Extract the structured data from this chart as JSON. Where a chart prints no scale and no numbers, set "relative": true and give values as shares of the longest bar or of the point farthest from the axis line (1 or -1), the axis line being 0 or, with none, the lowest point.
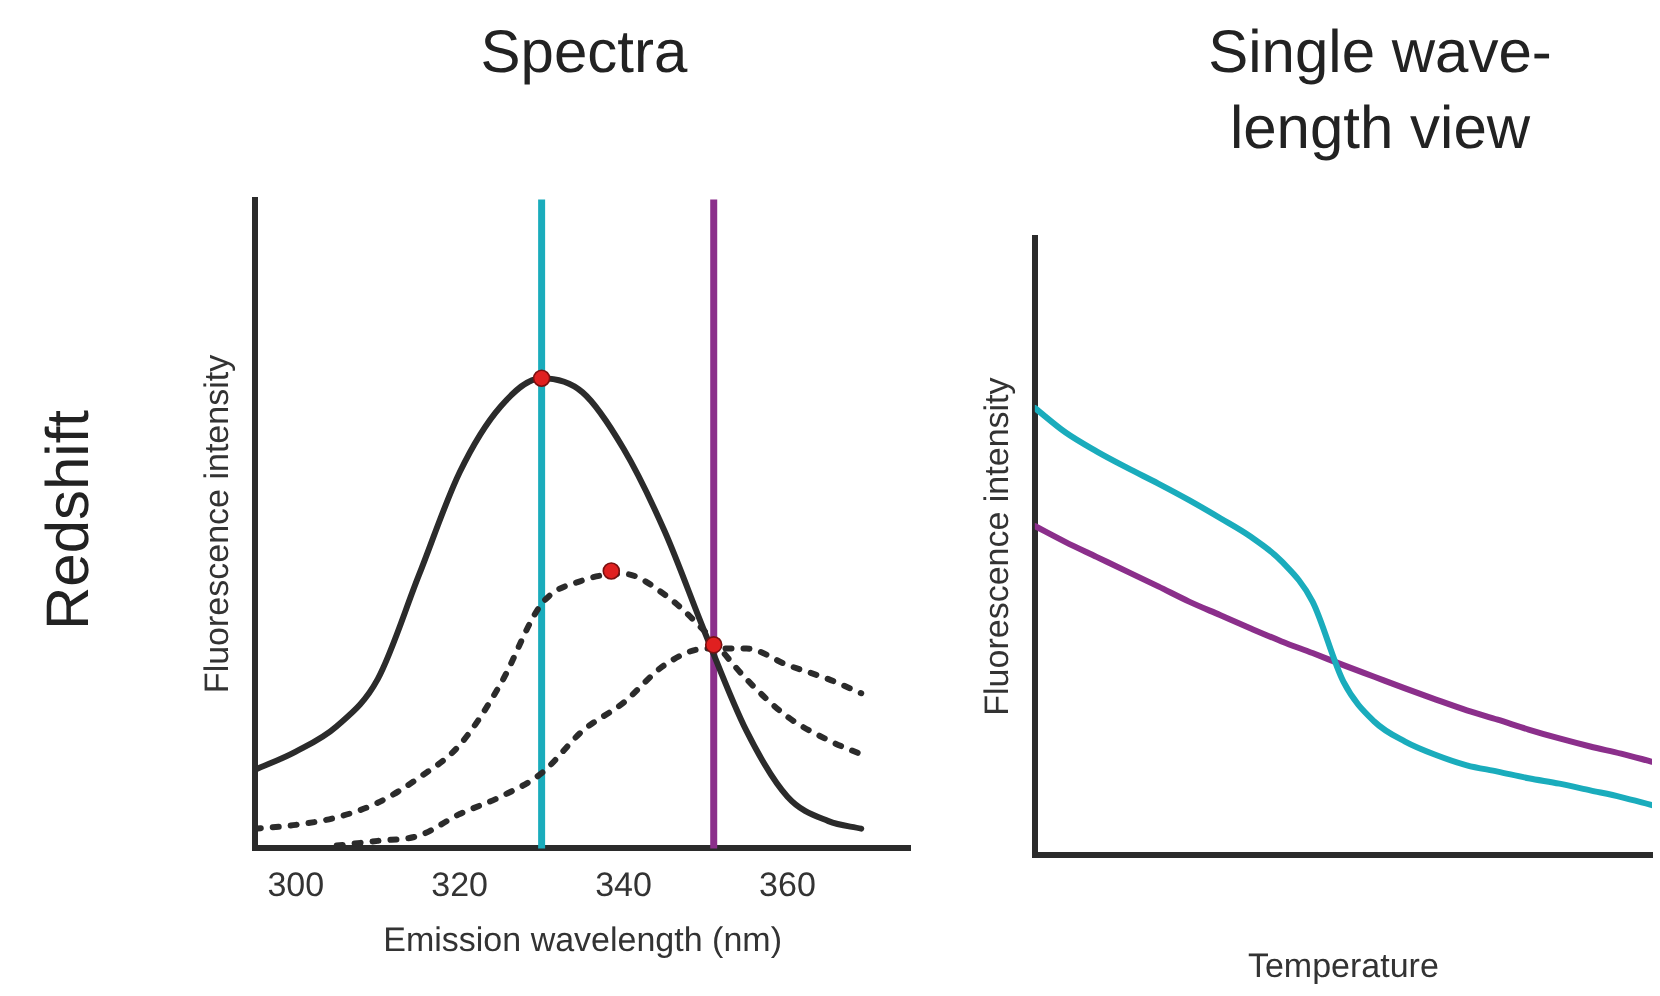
{
  "chart_data": [
    {
      "type": "line",
      "title": "Spectra",
      "xlabel": "Emission wavelength (nm)",
      "ylabel": "Fluorescence intensity",
      "annotations": [
        "Redshift"
      ],
      "relative": true,
      "xlim": [
        295,
        375
      ],
      "xticks": [
        300,
        320,
        340,
        360
      ],
      "tick_labels": "x",
      "grid": false,
      "legend": false,
      "x": [
        295,
        300,
        305,
        310,
        315,
        320,
        325,
        330,
        335,
        340,
        345,
        350,
        355,
        360,
        365,
        369
      ],
      "series": [
        {
          "color": "#2b2b2b",
          "line_style": "solid",
          "marker": "none",
          "values": [
            0.167,
            0.206,
            0.26,
            0.36,
            0.58,
            0.8,
            0.94,
            1.0,
            0.97,
            0.85,
            0.675,
            0.456,
            0.25,
            0.11,
            0.058,
            0.042
          ]
        },
        {
          "color": "#2b2b2b",
          "line_style": "dotted",
          "marker": "none",
          "values": [
            0.042,
            0.05,
            0.066,
            0.097,
            0.15,
            0.22,
            0.35,
            0.52,
            0.57,
            0.584,
            0.54,
            0.46,
            0.36,
            0.28,
            0.23,
            0.2
          ]
        },
        {
          "color": "#2b2b2b",
          "line_style": "dotted",
          "marker": "none",
          "x": [
            305,
            310,
            315,
            320,
            325,
            330,
            335,
            340,
            345,
            350,
            355,
            360,
            365,
            369
          ],
          "values": [
            0.006,
            0.016,
            0.027,
            0.073,
            0.11,
            0.16,
            0.25,
            0.31,
            0.39,
            0.425,
            0.425,
            0.39,
            0.36,
            0.33
          ]
        },
        {
          "type": "scatter",
          "color": "#e02020",
          "marker": "circle",
          "x": [
            330,
            338.5,
            351
          ],
          "values": [
            1.0,
            0.59,
            0.433
          ]
        }
      ],
      "ref_lines": [
        {
          "axis": "x",
          "value": 330,
          "color": "#1aacbc"
        },
        {
          "axis": "x",
          "value": 351,
          "color": "#8b2f8b"
        }
      ]
    },
    {
      "type": "line",
      "title": "Single wave-\nlength view",
      "xlabel": "Temperature",
      "ylabel": "Fluorescence intensity",
      "relative": true,
      "tick_labels": false,
      "grid": false,
      "legend": false,
      "categories": [
        null,
        null,
        null,
        null,
        null,
        null,
        null,
        null,
        null,
        null,
        null,
        null,
        null,
        null,
        null,
        null,
        null,
        null,
        null,
        null,
        null
      ],
      "series": [
        {
          "color": "#1aacbc",
          "values": [
            1.0,
            0.945,
            0.903,
            0.866,
            0.831,
            0.794,
            0.754,
            0.712,
            0.657,
            0.567,
            0.388,
            0.299,
            0.254,
            0.224,
            0.201,
            0.187,
            0.172,
            0.16,
            0.145,
            0.13,
            0.112
          ]
        },
        {
          "color": "#8b2f8b",
          "values": [
            0.736,
            0.7,
            0.667,
            0.634,
            0.601,
            0.567,
            0.537,
            0.507,
            0.478,
            0.452,
            0.425,
            0.399,
            0.373,
            0.348,
            0.324,
            0.303,
            0.281,
            0.261,
            0.243,
            0.227,
            0.209
          ]
        }
      ]
    }
  ]
}
